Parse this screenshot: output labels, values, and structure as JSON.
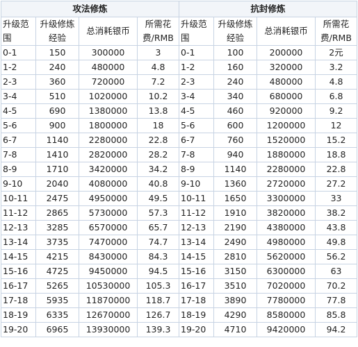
{
  "sections": [
    {
      "title": "攻法修炼",
      "headers": [
        "升级范围",
        "升级修炼经验",
        "总消耗银币",
        "所需花费/RMB"
      ]
    },
    {
      "title": "抗封修炼",
      "headers": [
        "升级范围",
        "升级修炼经验",
        "总消耗银币",
        "所需花费/RMB"
      ]
    }
  ],
  "rows": [
    {
      "range_a": "0-1",
      "exp_a": "150",
      "silver_a": "300000",
      "rmb_a": "3",
      "range_b": "0-1",
      "exp_b": "100",
      "silver_b": "200000",
      "rmb_b": "2元"
    },
    {
      "range_a": "1-2",
      "exp_a": "240",
      "silver_a": "480000",
      "rmb_a": "4.8",
      "range_b": "1-2",
      "exp_b": "160",
      "silver_b": "320000",
      "rmb_b": "3.2"
    },
    {
      "range_a": "2-3",
      "exp_a": "360",
      "silver_a": "720000",
      "rmb_a": "7.2",
      "range_b": "2-3",
      "exp_b": "240",
      "silver_b": "480000",
      "rmb_b": "4.8"
    },
    {
      "range_a": "3-4",
      "exp_a": "510",
      "silver_a": "1020000",
      "rmb_a": "10.2",
      "range_b": "3-4",
      "exp_b": "340",
      "silver_b": "680000",
      "rmb_b": "6.8"
    },
    {
      "range_a": "4-5",
      "exp_a": "690",
      "silver_a": "1380000",
      "rmb_a": "13.8",
      "range_b": "4-5",
      "exp_b": "460",
      "silver_b": "920000",
      "rmb_b": "9.2"
    },
    {
      "range_a": "5-6",
      "exp_a": "900",
      "silver_a": "1800000",
      "rmb_a": "18",
      "range_b": "5-6",
      "exp_b": "600",
      "silver_b": "1200000",
      "rmb_b": "12"
    },
    {
      "range_a": "6-7",
      "exp_a": "1140",
      "silver_a": "2280000",
      "rmb_a": "22.8",
      "range_b": "6-7",
      "exp_b": "760",
      "silver_b": "1520000",
      "rmb_b": "15.2"
    },
    {
      "range_a": "7-8",
      "exp_a": "1410",
      "silver_a": "2820000",
      "rmb_a": "28.2",
      "range_b": "7-8",
      "exp_b": "940",
      "silver_b": "1880000",
      "rmb_b": "18.8"
    },
    {
      "range_a": "8-9",
      "exp_a": "1710",
      "silver_a": "3420000",
      "rmb_a": "34.2",
      "range_b": "8-9",
      "exp_b": "1140",
      "silver_b": "2280000",
      "rmb_b": "22.8"
    },
    {
      "range_a": "9-10",
      "exp_a": "2040",
      "silver_a": "4080000",
      "rmb_a": "40.8",
      "range_b": "9-10",
      "exp_b": "1360",
      "silver_b": "2720000",
      "rmb_b": "27.2"
    },
    {
      "range_a": "10-11",
      "exp_a": "2475",
      "silver_a": "4950000",
      "rmb_a": "49.5",
      "range_b": "10-11",
      "exp_b": "1650",
      "silver_b": "3300000",
      "rmb_b": "33"
    },
    {
      "range_a": "11-12",
      "exp_a": "2865",
      "silver_a": "5730000",
      "rmb_a": "57.3",
      "range_b": "11-12",
      "exp_b": "1910",
      "silver_b": "3820000",
      "rmb_b": "38.2"
    },
    {
      "range_a": "12-13",
      "exp_a": "3285",
      "silver_a": "6570000",
      "rmb_a": "65.7",
      "range_b": "12-13",
      "exp_b": "2190",
      "silver_b": "4380000",
      "rmb_b": "43.8"
    },
    {
      "range_a": "13-14",
      "exp_a": "3735",
      "silver_a": "7470000",
      "rmb_a": "74.7",
      "range_b": "13-14",
      "exp_b": "2490",
      "silver_b": "4980000",
      "rmb_b": "49.8"
    },
    {
      "range_a": "14-15",
      "exp_a": "4215",
      "silver_a": "8430000",
      "rmb_a": "84.3",
      "range_b": "14-15",
      "exp_b": "2810",
      "silver_b": "5620000",
      "rmb_b": "56.2"
    },
    {
      "range_a": "15-16",
      "exp_a": "4725",
      "silver_a": "9450000",
      "rmb_a": "94.5",
      "range_b": "15-16",
      "exp_b": "3150",
      "silver_b": "6300000",
      "rmb_b": "63"
    },
    {
      "range_a": "16-17",
      "exp_a": "5265",
      "silver_a": "10530000",
      "rmb_a": "105.3",
      "range_b": "16-17",
      "exp_b": "3510",
      "silver_b": "7020000",
      "rmb_b": "70.2"
    },
    {
      "range_a": "17-18",
      "exp_a": "5935",
      "silver_a": "11870000",
      "rmb_a": "118.7",
      "range_b": "17-18",
      "exp_b": "3890",
      "silver_b": "7780000",
      "rmb_b": "77.8"
    },
    {
      "range_a": "18-19",
      "exp_a": "6335",
      "silver_a": "12670000",
      "rmb_a": "126.7",
      "range_b": "18-19",
      "exp_b": "4290",
      "silver_b": "8580000",
      "rmb_b": "85.8"
    },
    {
      "range_a": "19-20",
      "exp_a": "6965",
      "silver_a": "13930000",
      "rmb_a": "139.3",
      "range_b": "19-20",
      "exp_b": "4710",
      "silver_b": "9420000",
      "rmb_b": "94.2"
    }
  ],
  "colors": {
    "border": "#c7d3e3",
    "header_bg": "#f2f5f9",
    "text": "#222222"
  }
}
